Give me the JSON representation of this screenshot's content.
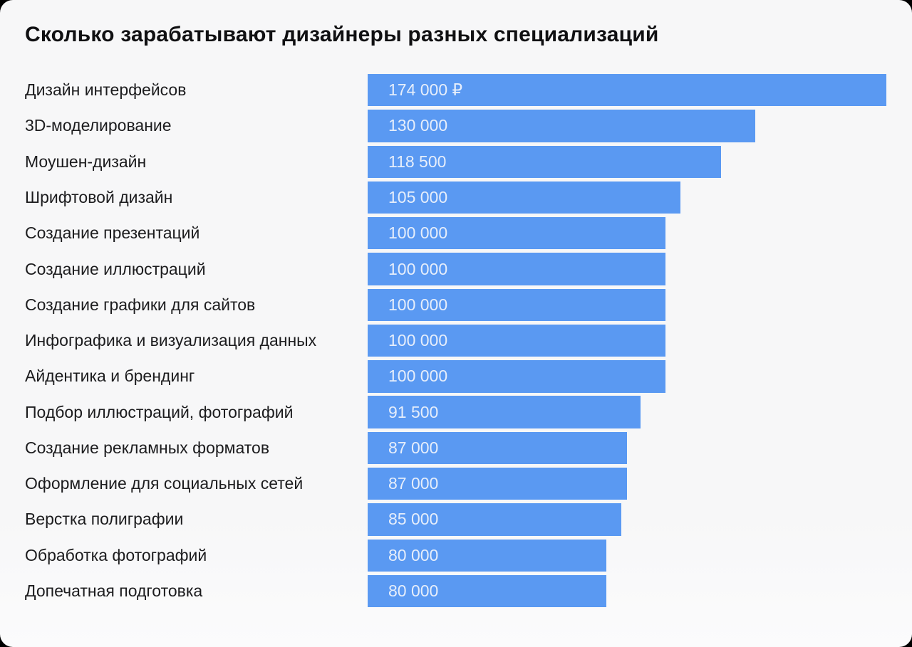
{
  "title": "Сколько зарабатывают дизайнеры разных специализаций",
  "colors": {
    "bar": "#5a99f2",
    "bar_value_text": "#e6eefb",
    "label_text": "#1c1c1e",
    "title_text": "#101012",
    "card_background": "#f7f7f8",
    "page_behind": "#000000"
  },
  "chart_data": {
    "type": "bar",
    "orientation": "horizontal",
    "title": "Сколько зарабатывают дизайнеры разных специализаций",
    "xlabel": "",
    "ylabel": "",
    "unit": "RUB",
    "grid": false,
    "legend": false,
    "xlim": [
      0,
      174000
    ],
    "categories": [
      "Дизайн интерфейсов",
      "3D-моделирование",
      "Моушен-дизайн",
      "Шрифтовой дизайн",
      "Создание презентаций",
      "Создание иллюстраций",
      "Создание графики для сайтов",
      "Инфографика и визуализация данных",
      "Айдентика и брендинг",
      "Подбор иллюстраций, фотографий",
      "Создание рекламных форматов",
      "Оформление для социальных сетей",
      "Верстка полиграфии",
      "Обработка фотографий",
      "Допечатная подготовка"
    ],
    "values": [
      174000,
      130000,
      118500,
      105000,
      100000,
      100000,
      100000,
      100000,
      100000,
      91500,
      87000,
      87000,
      85000,
      80000,
      80000
    ],
    "value_labels": [
      "174 000 ₽",
      "130 000",
      "118 500",
      "105 000",
      "100 000",
      "100 000",
      "100 000",
      "100 000",
      "100 000",
      "91 500",
      "87 000",
      "87 000",
      "85 000",
      "80 000",
      "80 000"
    ]
  }
}
